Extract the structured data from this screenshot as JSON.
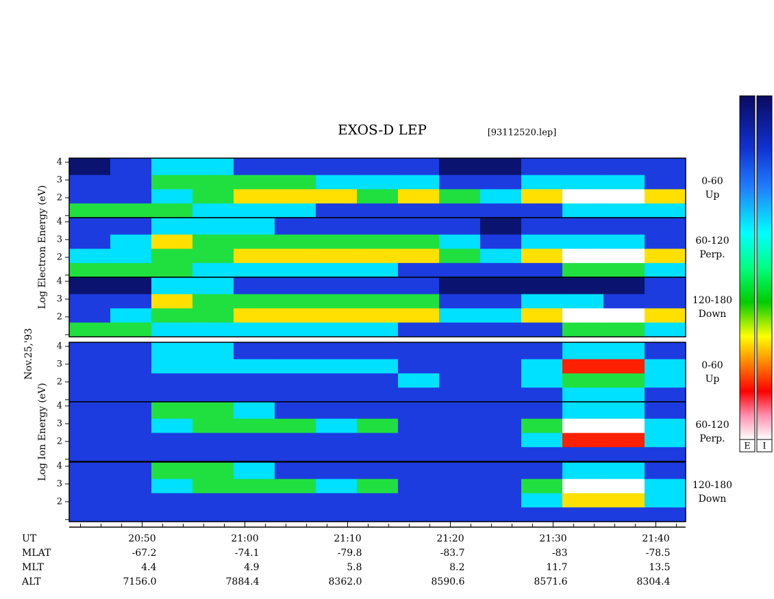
{
  "chart_data": {
    "type": "spectrogram",
    "title": "EXOS-D LEP",
    "file_label": "[93112520.lep]",
    "xlim": [
      42.9,
      102.9
    ],
    "xticks": [
      {
        "value": 50,
        "label": "20:50"
      },
      {
        "value": 60,
        "label": "21:00"
      },
      {
        "value": 70,
        "label": "21:10"
      },
      {
        "value": 80,
        "label": "21:20"
      },
      {
        "value": 90,
        "label": "21:30"
      },
      {
        "value": 100,
        "label": "21:40"
      }
    ],
    "minor_xticks": [
      44,
      46,
      48,
      52,
      54,
      56,
      58,
      62,
      64,
      66,
      68,
      72,
      74,
      76,
      78,
      82,
      84,
      86,
      88,
      92,
      94,
      96,
      98,
      102
    ],
    "xbins": [
      42.9,
      46.9,
      50.9,
      54.9,
      58.9,
      62.9,
      66.9,
      70.9,
      74.9,
      78.9,
      82.9,
      86.9,
      90.9,
      94.9,
      98.9,
      102.9
    ],
    "ylim": [
      0.88,
      4.23
    ],
    "yticks": [
      {
        "value": 1,
        "label": null
      },
      2,
      3,
      4
    ],
    "ybins": [
      0.88,
      1.7,
      2.5,
      3.3,
      4.23
    ],
    "colors": [
      "#0a1470",
      "#1c3ce0",
      "#00e0ff",
      "#20e040",
      "#ffe000",
      "#ff2000",
      "#ffffff"
    ],
    "colorbar_labels": [
      "E",
      "I"
    ],
    "electron_axis_label": "Log  Electron  Energy (eV)",
    "ion_axis_label": "Log  Ion  Energy (eV)",
    "date": "Nov.25,'93",
    "x_label": "UT",
    "panels": [
      {
        "labels": [
          "0-60",
          "Up"
        ],
        "levels": [
          [
            3,
            3,
            3,
            2,
            2,
            2,
            1,
            1,
            1,
            1,
            1,
            1,
            2,
            2,
            2
          ],
          [
            1,
            1,
            2,
            3,
            4,
            4,
            4,
            3,
            4,
            3,
            2,
            4,
            6,
            6,
            4
          ],
          [
            1,
            1,
            3,
            3,
            3,
            3,
            2,
            2,
            2,
            1,
            1,
            2,
            2,
            2,
            1
          ],
          [
            0,
            1,
            2,
            2,
            1,
            1,
            1,
            1,
            1,
            0,
            0,
            1,
            1,
            1,
            1
          ]
        ]
      },
      {
        "labels": [
          "60-120",
          "Perp."
        ],
        "levels": [
          [
            3,
            3,
            3,
            2,
            2,
            2,
            2,
            2,
            1,
            1,
            1,
            1,
            3,
            3,
            2
          ],
          [
            2,
            2,
            3,
            3,
            4,
            4,
            4,
            4,
            4,
            3,
            2,
            4,
            6,
            6,
            4
          ],
          [
            1,
            2,
            4,
            3,
            3,
            3,
            3,
            3,
            3,
            2,
            1,
            2,
            2,
            2,
            1
          ],
          [
            1,
            1,
            2,
            2,
            2,
            1,
            1,
            1,
            1,
            1,
            0,
            1,
            1,
            1,
            1
          ]
        ]
      },
      {
        "labels": [
          "120-180",
          "Down"
        ],
        "levels": [
          [
            3,
            3,
            2,
            2,
            2,
            2,
            2,
            2,
            1,
            1,
            1,
            1,
            3,
            3,
            2
          ],
          [
            1,
            2,
            3,
            3,
            4,
            4,
            4,
            4,
            4,
            2,
            2,
            4,
            6,
            6,
            4
          ],
          [
            1,
            1,
            4,
            3,
            3,
            3,
            3,
            3,
            3,
            1,
            1,
            2,
            2,
            1,
            1
          ],
          [
            0,
            0,
            2,
            2,
            1,
            1,
            1,
            1,
            1,
            0,
            0,
            0,
            0,
            0,
            1
          ]
        ]
      },
      {
        "labels": [
          "0-60",
          "Up"
        ],
        "levels": [
          [
            1,
            1,
            1,
            1,
            1,
            1,
            1,
            1,
            1,
            1,
            1,
            1,
            2,
            2,
            1
          ],
          [
            1,
            1,
            1,
            1,
            1,
            1,
            1,
            1,
            2,
            1,
            1,
            2,
            3,
            3,
            2
          ],
          [
            1,
            1,
            2,
            2,
            2,
            2,
            2,
            2,
            1,
            1,
            1,
            2,
            5,
            5,
            2
          ],
          [
            1,
            1,
            2,
            2,
            1,
            1,
            1,
            1,
            1,
            1,
            1,
            1,
            2,
            2,
            1
          ]
        ]
      },
      {
        "labels": [
          "60-120",
          "Perp."
        ],
        "levels": [
          [
            1,
            1,
            1,
            1,
            1,
            1,
            1,
            1,
            1,
            1,
            1,
            1,
            1,
            1,
            1
          ],
          [
            1,
            1,
            1,
            1,
            1,
            1,
            1,
            1,
            1,
            1,
            1,
            2,
            5,
            5,
            2
          ],
          [
            1,
            1,
            2,
            3,
            3,
            3,
            2,
            3,
            1,
            1,
            1,
            3,
            6,
            6,
            2
          ],
          [
            1,
            1,
            3,
            3,
            2,
            1,
            1,
            1,
            1,
            1,
            1,
            1,
            2,
            2,
            1
          ]
        ]
      },
      {
        "labels": [
          "120-180",
          "Down"
        ],
        "levels": [
          [
            1,
            1,
            1,
            1,
            1,
            1,
            1,
            1,
            1,
            1,
            1,
            1,
            1,
            1,
            1
          ],
          [
            1,
            1,
            1,
            1,
            1,
            1,
            1,
            1,
            1,
            1,
            1,
            2,
            4,
            4,
            2
          ],
          [
            1,
            1,
            2,
            3,
            3,
            3,
            2,
            3,
            1,
            1,
            1,
            3,
            6,
            6,
            2
          ],
          [
            1,
            1,
            3,
            3,
            2,
            1,
            1,
            1,
            1,
            1,
            1,
            1,
            2,
            2,
            1
          ]
        ]
      }
    ],
    "ephemeris": [
      {
        "name": "MLAT",
        "values": [
          -67.2,
          -74.1,
          -79.8,
          -83.7,
          -83.0,
          -78.5
        ]
      },
      {
        "name": "MLT",
        "values": [
          4.4,
          4.9,
          5.8,
          8.2,
          11.7,
          13.5
        ]
      },
      {
        "name": "ALT",
        "values": [
          7156.0,
          7884.4,
          8362.0,
          8590.6,
          8571.6,
          8304.4
        ],
        "value_labels": [
          "7156.0",
          "7884.4",
          "8362.0",
          "8590.6",
          "8571.6",
          "8304.4"
        ]
      }
    ]
  }
}
